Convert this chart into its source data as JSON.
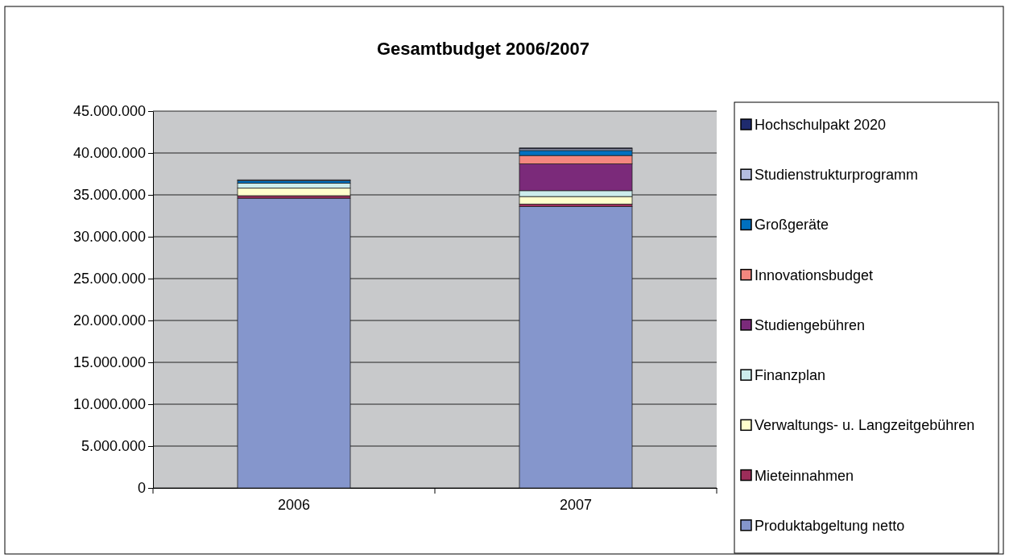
{
  "chart_data": {
    "type": "bar",
    "stacked": true,
    "title": "Gesamtbudget 2006/2007",
    "categories": [
      "2006",
      "2007"
    ],
    "series": [
      {
        "name": "Produktabgeltung netto",
        "color": "#8596cc",
        "values": [
          34600000,
          33600000
        ]
      },
      {
        "name": "Mieteinnahmen",
        "color": "#9c2d5a",
        "values": [
          300000,
          300000
        ]
      },
      {
        "name": "Verwaltungs- u. Langzeitgebühren",
        "color": "#ffffcc",
        "values": [
          900000,
          900000
        ]
      },
      {
        "name": "Finanzplan",
        "color": "#ccecec",
        "values": [
          600000,
          700000
        ]
      },
      {
        "name": "Studiengebühren",
        "color": "#7b2a7a",
        "values": [
          0,
          3200000
        ]
      },
      {
        "name": "Innovationsbudget",
        "color": "#f4877f",
        "values": [
          0,
          1000000
        ]
      },
      {
        "name": "Großgeräte",
        "color": "#0070c0",
        "values": [
          300000,
          600000
        ]
      },
      {
        "name": "Studienstrukturprogramm",
        "color": "#b4bde0",
        "values": [
          100000,
          200000
        ]
      },
      {
        "name": "Hochschulpakt 2020",
        "color": "#1f2b6e",
        "values": [
          0,
          100000
        ]
      }
    ],
    "ylim": [
      0,
      45000000
    ],
    "yticks": [
      {
        "value": 0,
        "label": "0"
      },
      {
        "value": 5000000,
        "label": "5.000.000"
      },
      {
        "value": 10000000,
        "label": "10.000.000"
      },
      {
        "value": 15000000,
        "label": "15.000.000"
      },
      {
        "value": 20000000,
        "label": "20.000.000"
      },
      {
        "value": 25000000,
        "label": "25.000.000"
      },
      {
        "value": 30000000,
        "label": "30.000.000"
      },
      {
        "value": 35000000,
        "label": "35.000.000"
      },
      {
        "value": 40000000,
        "label": "40.000.000"
      },
      {
        "value": 45000000,
        "label": "45.000.000"
      }
    ],
    "grid": "y",
    "legend": "right"
  }
}
